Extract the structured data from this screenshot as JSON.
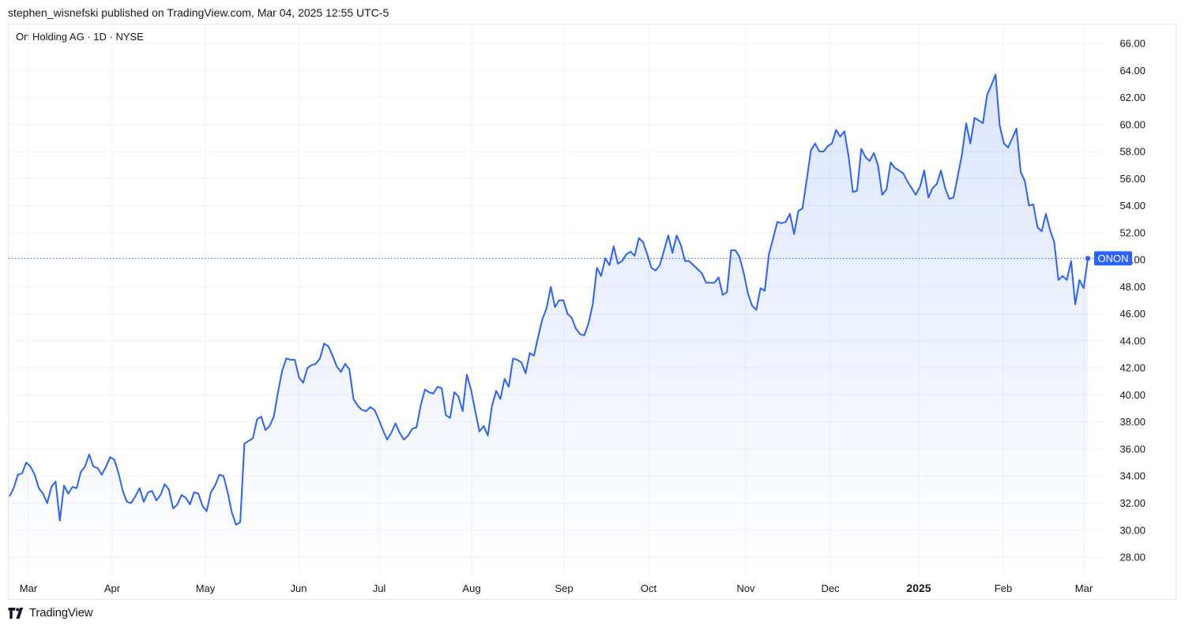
{
  "header": {
    "published_text": "stephen_wisnefski published on TradingView.com, Mar 04, 2025 12:55 UTC-5"
  },
  "chart_title": "On Holding AG · 1D · NYSE",
  "brand": {
    "name": "TradingView",
    "logo_icon": "tradingview-logo-icon"
  },
  "colors": {
    "line": "#2962ff",
    "grid": "#f0f3fa",
    "axis_text": "#131722",
    "badge_bg": "#2962ff",
    "badge_text": "#ffffff",
    "price_line": "#2962ff"
  },
  "chart_data": {
    "type": "area",
    "title": "On Holding AG · 1D · NYSE",
    "series": [
      {
        "name": "ONON",
        "last_value": 50.1,
        "values": [
          32.5,
          33.1,
          34.1,
          34.2,
          35.0,
          34.7,
          34.1,
          33.1,
          32.7,
          32.0,
          33.2,
          33.6,
          30.7,
          33.3,
          32.7,
          33.2,
          33.1,
          34.3,
          34.7,
          35.6,
          34.7,
          34.6,
          34.1,
          34.7,
          35.4,
          35.2,
          34.2,
          32.9,
          32.1,
          32.0,
          32.5,
          33.1,
          32.1,
          32.8,
          32.9,
          32.2,
          32.6,
          33.4,
          33.0,
          31.6,
          31.9,
          32.6,
          32.4,
          31.9,
          32.8,
          32.7,
          31.8,
          31.4,
          32.8,
          33.3,
          34.1,
          34.0,
          32.8,
          31.3,
          30.4,
          30.6,
          36.4,
          36.6,
          36.8,
          38.2,
          38.4,
          37.4,
          37.7,
          38.4,
          40.2,
          41.8,
          42.7,
          42.6,
          42.6,
          41.3,
          40.9,
          42.0,
          42.2,
          42.3,
          42.7,
          43.8,
          43.6,
          42.9,
          42.1,
          41.7,
          42.3,
          41.9,
          39.7,
          39.2,
          38.9,
          38.8,
          39.1,
          38.9,
          38.2,
          37.4,
          36.7,
          37.2,
          37.9,
          37.2,
          36.7,
          37.0,
          37.5,
          37.6,
          39.2,
          40.4,
          40.2,
          40.1,
          40.6,
          40.5,
          38.5,
          38.3,
          40.2,
          39.9,
          38.8,
          41.5,
          40.4,
          38.8,
          37.3,
          37.7,
          37.0,
          39.2,
          40.3,
          39.7,
          41.2,
          40.6,
          42.7,
          42.6,
          42.4,
          41.6,
          43.1,
          42.9,
          44.3,
          45.6,
          46.4,
          48.0,
          46.5,
          47.0,
          47.0,
          46.0,
          45.7,
          44.9,
          44.5,
          44.4,
          45.3,
          46.7,
          49.4,
          48.8,
          50.1,
          49.6,
          51.0,
          49.7,
          49.9,
          50.4,
          50.6,
          50.3,
          51.6,
          51.3,
          50.4,
          49.4,
          49.2,
          49.6,
          50.7,
          51.8,
          50.5,
          51.8,
          51.1,
          49.9,
          49.9,
          49.6,
          49.3,
          49.0,
          48.3,
          48.3,
          48.3,
          48.7,
          47.4,
          47.6,
          50.7,
          50.7,
          50.2,
          49.0,
          47.5,
          46.6,
          46.3,
          47.9,
          47.7,
          50.4,
          51.6,
          52.8,
          52.7,
          52.8,
          53.4,
          51.9,
          53.6,
          53.8,
          55.9,
          58.1,
          58.6,
          58.0,
          58.0,
          58.4,
          58.6,
          59.6,
          59.1,
          59.5,
          57.6,
          55.0,
          55.1,
          58.2,
          57.6,
          57.3,
          57.9,
          57.0,
          54.8,
          55.2,
          57.2,
          56.8,
          56.6,
          56.4,
          55.8,
          55.3,
          54.8,
          55.4,
          56.6,
          54.6,
          55.3,
          55.6,
          56.6,
          55.3,
          54.5,
          54.6,
          56.2,
          57.8,
          60.1,
          58.6,
          60.5,
          60.3,
          60.1,
          62.2,
          62.9,
          63.7,
          59.9,
          58.6,
          58.3,
          59.0,
          59.7,
          56.5,
          55.8,
          54.0,
          54.1,
          52.4,
          52.1,
          53.4,
          52.2,
          51.3,
          48.5,
          48.8,
          48.5,
          49.9,
          46.7,
          48.5,
          47.9,
          50.1
        ]
      }
    ],
    "x_tick_labels": [
      "Mar",
      "Apr",
      "May",
      "Jun",
      "Jul",
      "Aug",
      "Sep",
      "Oct",
      "Nov",
      "Dec",
      "2025",
      "Feb",
      "Mar"
    ],
    "bold_tick": "2025",
    "y_tick_labels": [
      "66.00",
      "64.00",
      "62.00",
      "60.00",
      "58.00",
      "56.00",
      "54.00",
      "52.00",
      "50.00",
      "48.00",
      "46.00",
      "44.00",
      "42.00",
      "40.00",
      "38.00",
      "36.00",
      "34.00",
      "32.00",
      "30.00",
      "28.00"
    ],
    "y_ticks": [
      66,
      64,
      62,
      60,
      58,
      56,
      54,
      52,
      50,
      48,
      46,
      44,
      42,
      40,
      38,
      36,
      34,
      32,
      30,
      28
    ],
    "ylim": [
      26.6,
      67.4
    ],
    "grid": true,
    "badge_label": "ONON"
  }
}
